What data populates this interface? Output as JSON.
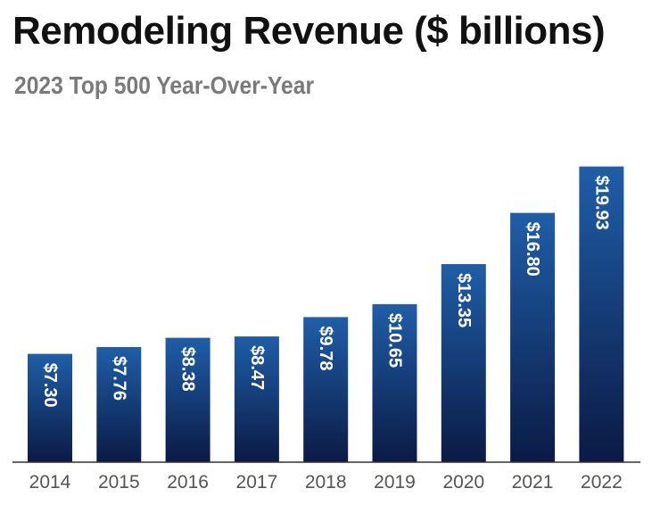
{
  "chart_data": {
    "type": "bar",
    "title": "Remodeling Revenue ($ billions)",
    "subtitle": "2023 Top 500 Year-Over-Year",
    "categories": [
      "2014",
      "2015",
      "2016",
      "2017",
      "2018",
      "2019",
      "2020",
      "2021",
      "2022"
    ],
    "values": [
      7.3,
      7.76,
      8.38,
      8.47,
      9.78,
      10.65,
      13.35,
      16.8,
      19.93
    ],
    "value_labels": [
      "$7.30",
      "$7.76",
      "$8.38",
      "$8.47",
      "$9.78",
      "$10.65",
      "$13.35",
      "$16.80",
      "$19.93"
    ],
    "xlabel": "",
    "ylabel": "",
    "ylim": [
      0,
      20
    ],
    "grid": false,
    "legend": "none",
    "colors": {
      "bar_top": "#1f5ea8",
      "bar_bottom": "#0b1a45",
      "axis": "#333333",
      "title": "#111111",
      "subtitle": "#7a7a7a",
      "tick": "#555555"
    }
  }
}
